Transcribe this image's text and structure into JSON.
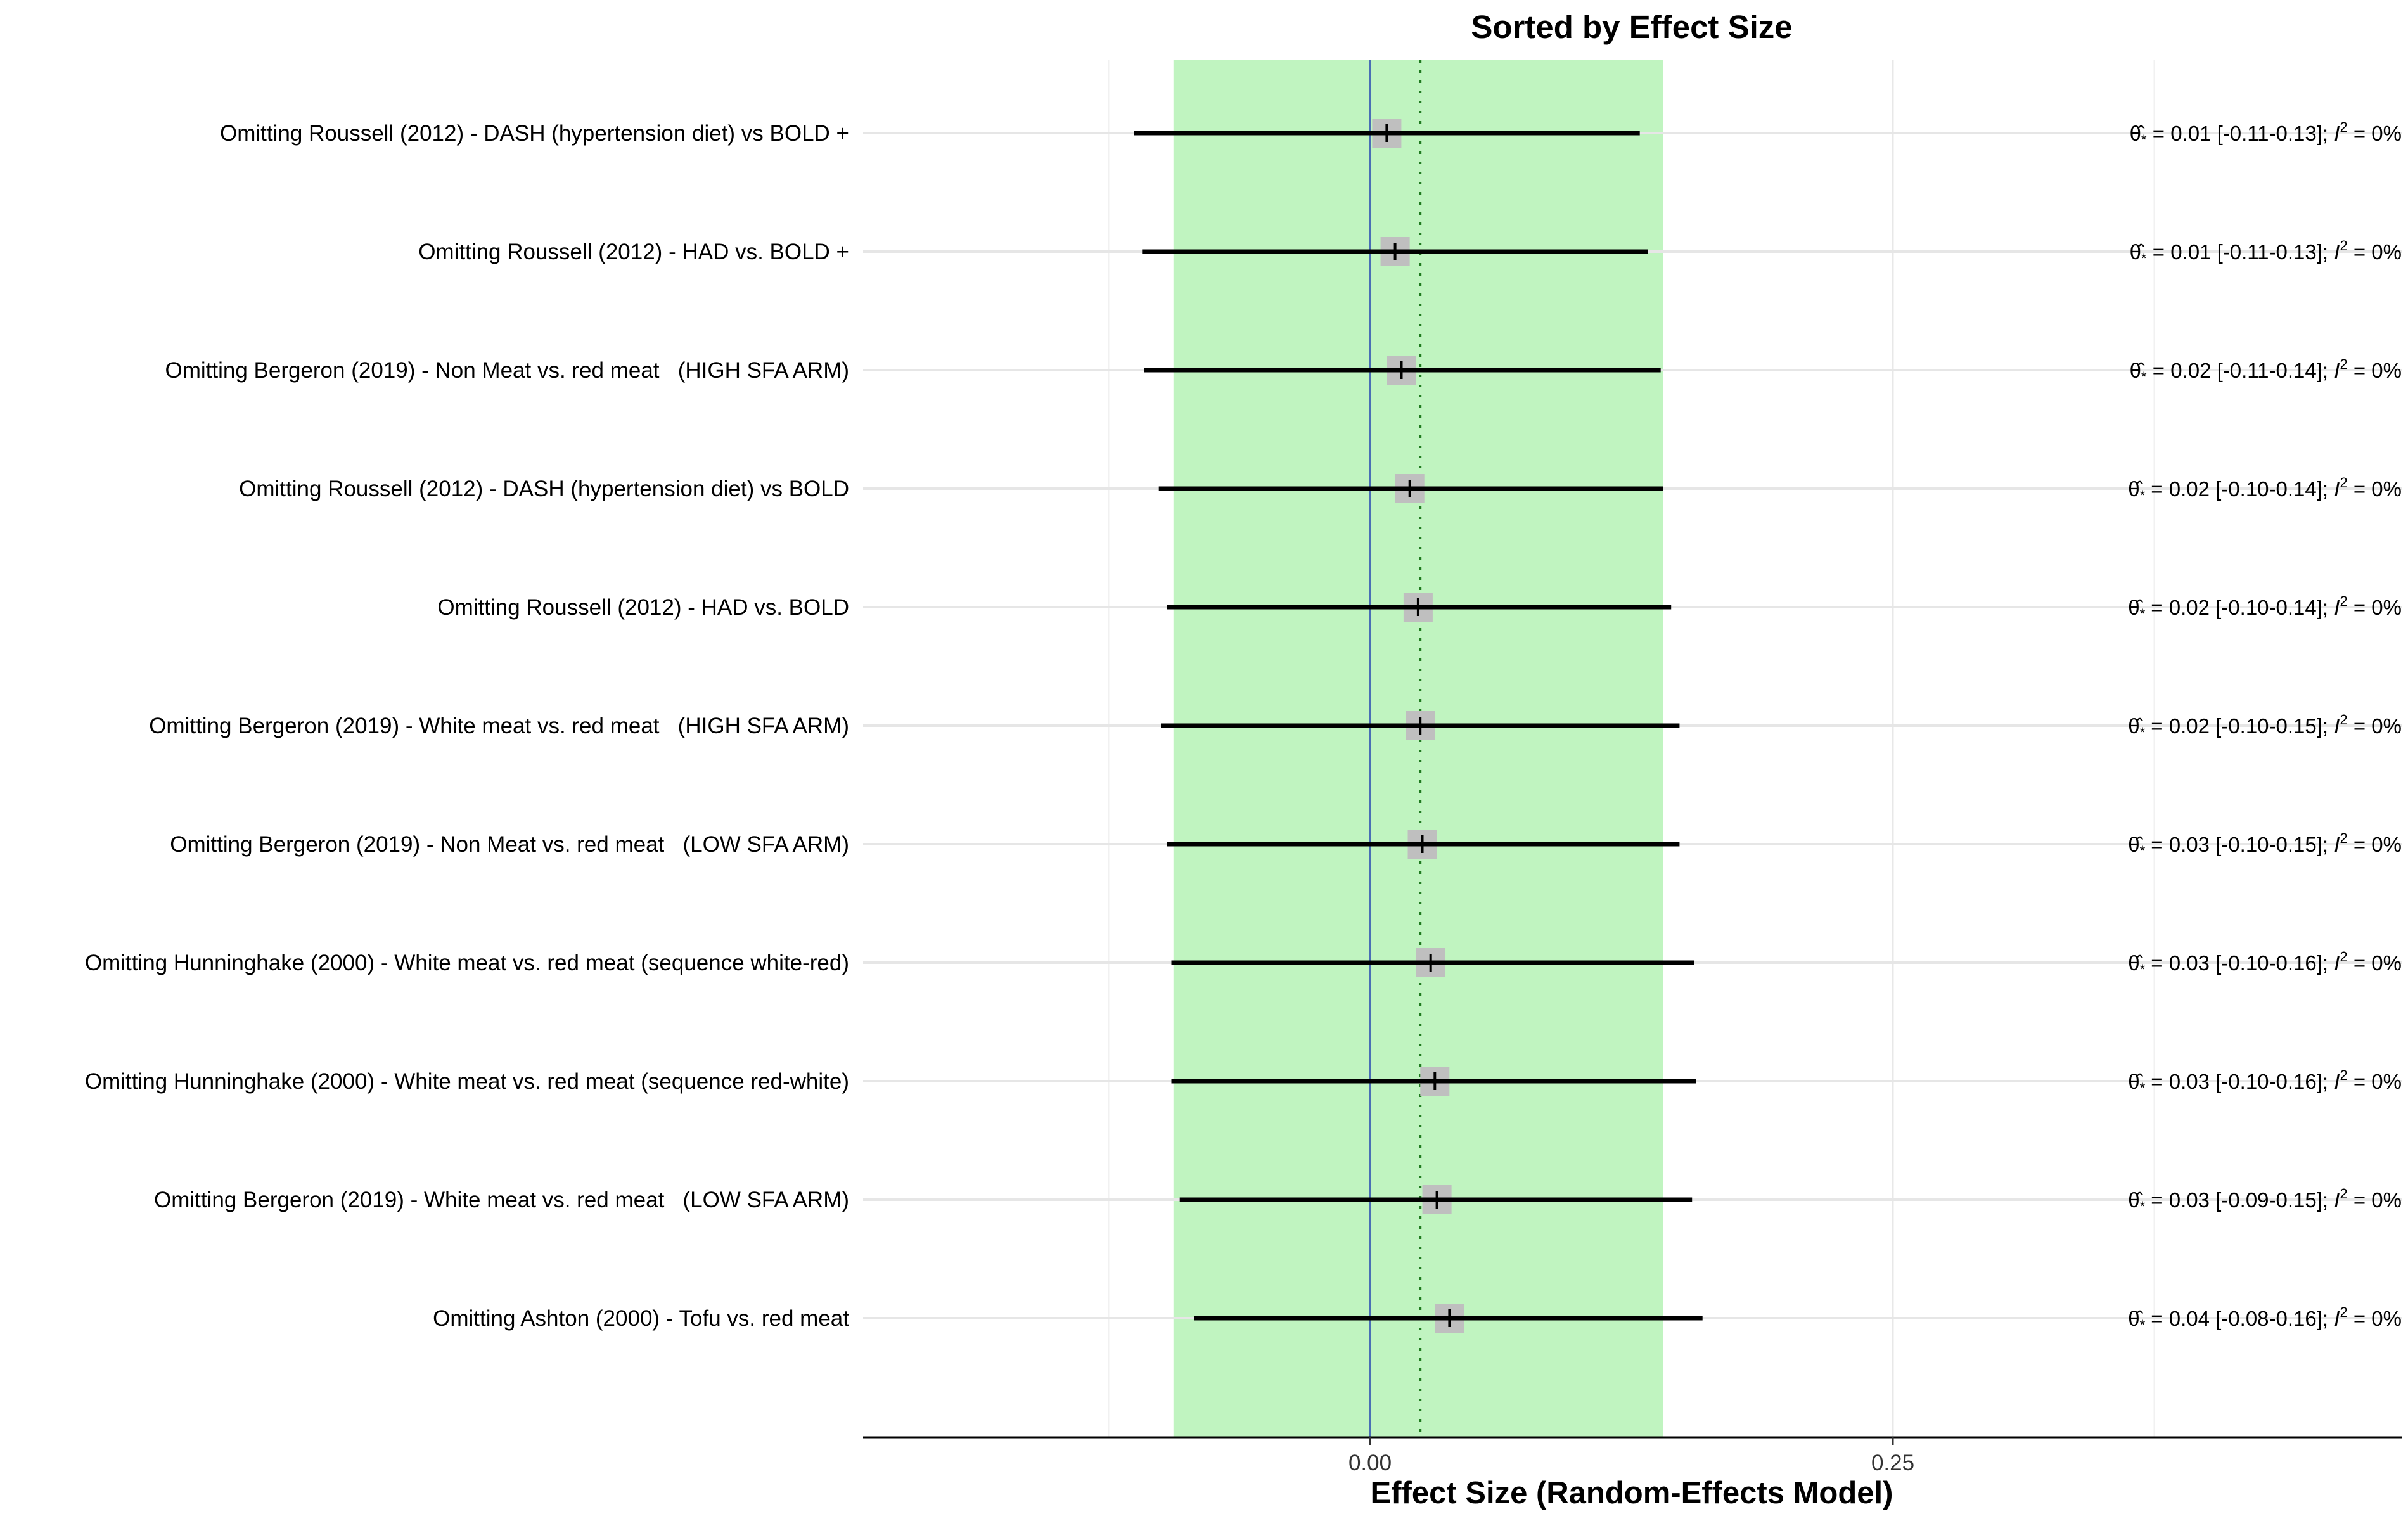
{
  "chart_data": {
    "type": "forest",
    "title": "Sorted by Effect Size",
    "xlabel": "Effect Size (Random-Effects Model)",
    "ylabel": "",
    "xlim": [
      -0.245,
      0.49
    ],
    "xticks": [
      0.0,
      0.25
    ],
    "xtick_labels": [
      "0.00",
      "0.25"
    ],
    "grid": true,
    "reference_line": 0.0,
    "pooled_estimate": 0.024,
    "pooled_ci_band": [
      -0.094,
      0.14
    ],
    "colors": {
      "band": "#c0f4c0",
      "reference_line": "#4a6fb5",
      "pooled_line": "#1f7a1f",
      "point_box": "#bfbfbf",
      "ci_line": "#000000",
      "grid": "#e8e8e8"
    },
    "rows": [
      {
        "label": "Omitting Roussell (2012) - DASH (hypertension diet) vs BOLD +",
        "estimate": 0.008,
        "ci_low": -0.113,
        "ci_high": 0.129,
        "theta": "0.01",
        "ci_text": "[-0.11-0.13]",
        "i2": "0%"
      },
      {
        "label": "Omitting Roussell (2012) - HAD vs. BOLD +",
        "estimate": 0.012,
        "ci_low": -0.109,
        "ci_high": 0.133,
        "theta": "0.01",
        "ci_text": "[-0.11-0.13]",
        "i2": "0%"
      },
      {
        "label": "Omitting Bergeron (2019) - Non Meat vs. red meat   (HIGH SFA ARM)",
        "estimate": 0.015,
        "ci_low": -0.108,
        "ci_high": 0.139,
        "theta": "0.02",
        "ci_text": "[-0.11-0.14]",
        "i2": "0%"
      },
      {
        "label": "Omitting Roussell (2012) - DASH (hypertension diet) vs BOLD",
        "estimate": 0.019,
        "ci_low": -0.101,
        "ci_high": 0.14,
        "theta": "0.02",
        "ci_text": "[-0.10-0.14]",
        "i2": "0%"
      },
      {
        "label": "Omitting Roussell (2012) - HAD vs. BOLD",
        "estimate": 0.023,
        "ci_low": -0.097,
        "ci_high": 0.144,
        "theta": "0.02",
        "ci_text": "[-0.10-0.14]",
        "i2": "0%"
      },
      {
        "label": "Omitting Bergeron (2019) - White meat vs. red meat   (HIGH SFA ARM)",
        "estimate": 0.024,
        "ci_low": -0.1,
        "ci_high": 0.148,
        "theta": "0.02",
        "ci_text": "[-0.10-0.15]",
        "i2": "0%"
      },
      {
        "label": "Omitting Bergeron (2019) - Non Meat vs. red meat   (LOW SFA ARM)",
        "estimate": 0.025,
        "ci_low": -0.097,
        "ci_high": 0.148,
        "theta": "0.03",
        "ci_text": "[-0.10-0.15]",
        "i2": "0%"
      },
      {
        "label": "Omitting Hunninghake (2000) - White meat vs. red meat (sequence white-red)",
        "estimate": 0.029,
        "ci_low": -0.095,
        "ci_high": 0.155,
        "theta": "0.03",
        "ci_text": "[-0.10-0.16]",
        "i2": "0%"
      },
      {
        "label": "Omitting Hunninghake (2000) - White meat vs. red meat (sequence red-white)",
        "estimate": 0.031,
        "ci_low": -0.095,
        "ci_high": 0.156,
        "theta": "0.03",
        "ci_text": "[-0.10-0.16]",
        "i2": "0%"
      },
      {
        "label": "Omitting Bergeron (2019) - White meat vs. red meat   (LOW SFA ARM)",
        "estimate": 0.032,
        "ci_low": -0.091,
        "ci_high": 0.154,
        "theta": "0.03",
        "ci_text": "[-0.09-0.15]",
        "i2": "0%"
      },
      {
        "label": "Omitting Ashton (2000) - Tofu vs. red meat",
        "estimate": 0.038,
        "ci_low": -0.084,
        "ci_high": 0.159,
        "theta": "0.04",
        "ci_text": "[-0.08-0.16]",
        "i2": "0%"
      }
    ]
  }
}
